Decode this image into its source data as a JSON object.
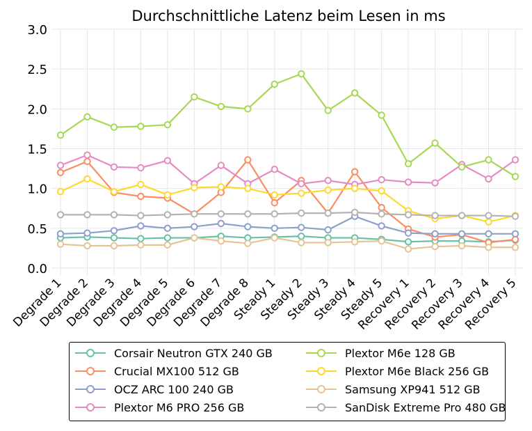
{
  "chart_data": {
    "type": "line",
    "title": "Durchschnittliche Latenz beim Lesen in ms",
    "xlabel": "",
    "ylabel": "",
    "ylim": [
      0.0,
      3.0
    ],
    "yticks": [
      "0.0",
      "0.5",
      "1.0",
      "1.5",
      "2.0",
      "2.5",
      "3.0"
    ],
    "grid": true,
    "legend_position": "bottom",
    "categories": [
      "Degrade 1",
      "Degrade 2",
      "Degrade 3",
      "Degrade 4",
      "Degrade 5",
      "Degrade 6",
      "Degrade 7",
      "Degrade 8",
      "Steady 1",
      "Steady 2",
      "Steady 3",
      "Steady 4",
      "Steady 5",
      "Recovery 1",
      "Recovery 2",
      "Recovery 3",
      "Recovery 4",
      "Recovery 5"
    ],
    "series": [
      {
        "name": "Corsair Neutron GTX 240 GB",
        "color": "#66c2a5",
        "values": [
          0.38,
          0.39,
          0.38,
          0.37,
          0.38,
          0.38,
          0.4,
          0.38,
          0.39,
          0.4,
          0.38,
          0.38,
          0.36,
          0.33,
          0.34,
          0.34,
          0.33,
          0.35
        ]
      },
      {
        "name": "Crucial MX100 512 GB",
        "color": "#fc8d62",
        "values": [
          1.2,
          1.34,
          0.95,
          0.9,
          0.88,
          0.68,
          0.95,
          1.36,
          0.82,
          1.1,
          0.69,
          1.21,
          0.76,
          0.49,
          0.39,
          0.42,
          0.32,
          0.36
        ]
      },
      {
        "name": "OCZ ARC 100 240 GB",
        "color": "#8da0cb",
        "values": [
          0.43,
          0.44,
          0.47,
          0.53,
          0.5,
          0.52,
          0.56,
          0.52,
          0.5,
          0.51,
          0.48,
          0.65,
          0.53,
          0.44,
          0.43,
          0.43,
          0.43,
          0.43
        ]
      },
      {
        "name": "Plextor M6 PRO 256 GB",
        "color": "#e78ac3",
        "values": [
          1.29,
          1.42,
          1.27,
          1.26,
          1.35,
          1.06,
          1.29,
          1.06,
          1.24,
          1.06,
          1.1,
          1.05,
          1.11,
          1.08,
          1.07,
          1.3,
          1.12,
          1.36
        ]
      },
      {
        "name": "Plextor M6e 128 GB",
        "color": "#a6d854",
        "values": [
          1.67,
          1.9,
          1.77,
          1.78,
          1.8,
          2.15,
          2.03,
          2.0,
          2.31,
          2.44,
          1.98,
          2.2,
          1.92,
          1.31,
          1.57,
          1.27,
          1.36,
          1.15
        ]
      },
      {
        "name": "Plextor M6e Black 256 GB",
        "color": "#ffd92f",
        "values": [
          0.96,
          1.12,
          0.96,
          1.05,
          0.92,
          1.01,
          1.02,
          1.0,
          0.92,
          0.94,
          0.98,
          1.0,
          0.97,
          0.72,
          0.62,
          0.66,
          0.58,
          0.66
        ]
      },
      {
        "name": "Samsung XP941 512 GB",
        "color": "#e5c494",
        "values": [
          0.3,
          0.28,
          0.28,
          0.29,
          0.29,
          0.38,
          0.34,
          0.31,
          0.38,
          0.32,
          0.32,
          0.33,
          0.34,
          0.24,
          0.27,
          0.28,
          0.26,
          0.26
        ]
      },
      {
        "name": "SanDisk Extreme Pro 480 GB",
        "color": "#b3b3b3",
        "values": [
          0.67,
          0.67,
          0.67,
          0.66,
          0.67,
          0.68,
          0.68,
          0.68,
          0.68,
          0.69,
          0.69,
          0.7,
          0.68,
          0.67,
          0.66,
          0.66,
          0.66,
          0.65
        ]
      }
    ]
  }
}
